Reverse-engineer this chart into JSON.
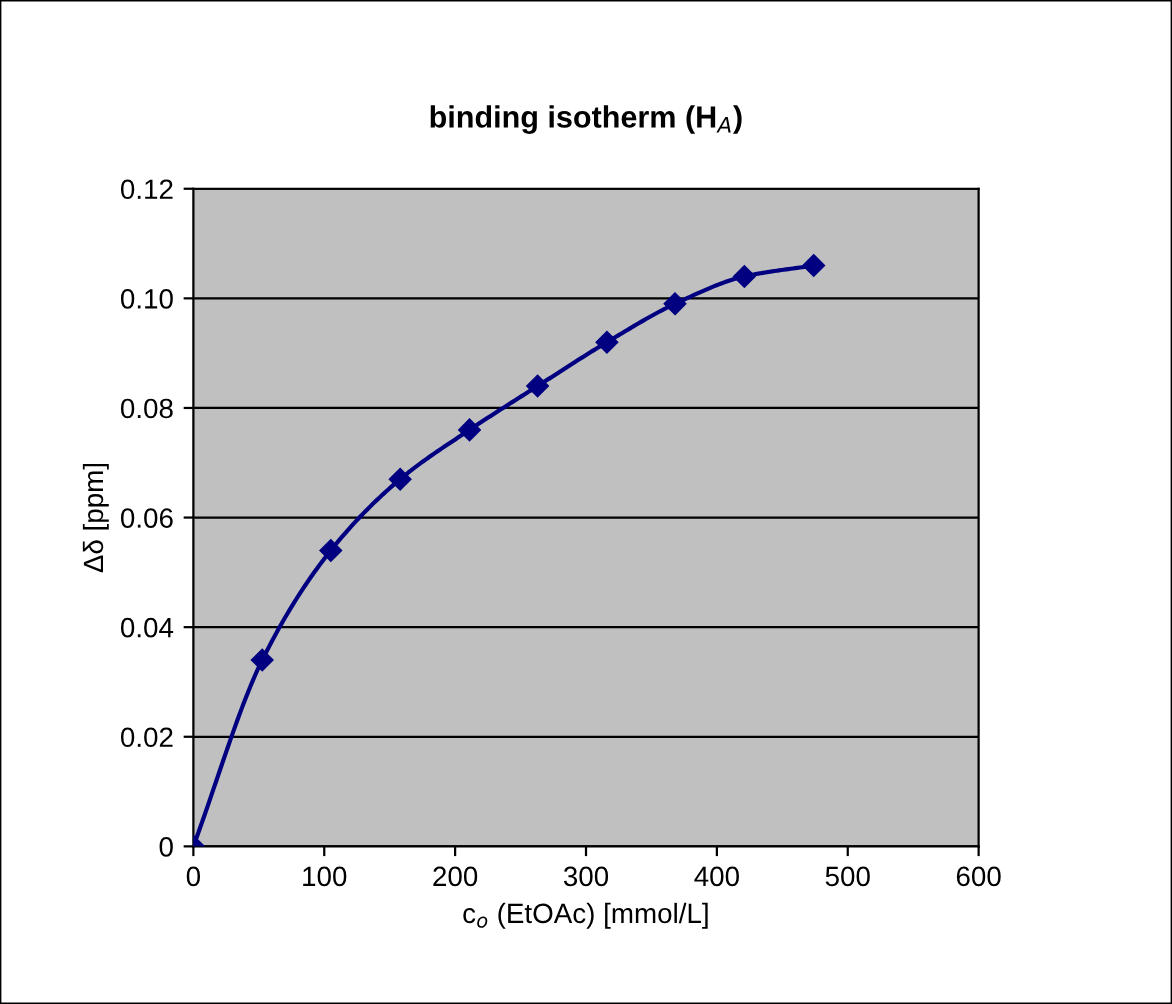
{
  "chart_data": {
    "type": "line",
    "title": "binding isotherm (H$_{A}$)",
    "xlabel": "c$_{o}$ (EtOAc) [mmol/L]",
    "ylabel": "Δδ [ppm]",
    "x": [
      0,
      52.6,
      105,
      158,
      211,
      263,
      316,
      368,
      421,
      474
    ],
    "series": [
      {
        "color": "#000080",
        "values": [
          0,
          0.034,
          0.054,
          0.067,
          0.076,
          0.084,
          0.092,
          0.099,
          0.104,
          0.106
        ]
      }
    ],
    "xlim": [
      0,
      600
    ],
    "xticks": [
      0,
      100,
      200,
      300,
      400,
      500,
      600
    ],
    "ylim": [
      0,
      0.12
    ],
    "yticks": [
      0,
      0.02,
      0.04,
      0.06,
      0.08,
      {
        "value": 0.1,
        "label": "0.10"
      },
      0.12
    ],
    "grid": "y",
    "marker": "diamond",
    "line_style": "solid",
    "legend": false
  }
}
